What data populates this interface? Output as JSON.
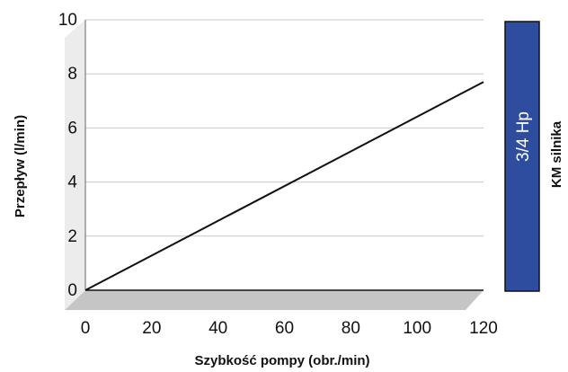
{
  "chart_data": {
    "type": "line",
    "xlabel": "Szybkość pompy (obr./min)",
    "ylabel": "Przepływ (l/min)",
    "xlim": [
      0,
      120
    ],
    "ylim": [
      0,
      10
    ],
    "xticks": [
      "0",
      "20",
      "40",
      "60",
      "80",
      "100",
      "120"
    ],
    "yticks": [
      "0",
      "2",
      "4",
      "6",
      "8",
      "10"
    ],
    "grid": "horizontal",
    "series": [
      {
        "x": [
          0,
          120
        ],
        "values": [
          0,
          7.7
        ]
      }
    ]
  },
  "motor_panel": {
    "title": "KM silnika",
    "label": "3/4 Hp",
    "color": "#2e4d9e"
  },
  "colors": {
    "line": "#111111",
    "grid": "#c8c8c8",
    "floor": "#c5c5c5",
    "wall": "#ececec"
  }
}
